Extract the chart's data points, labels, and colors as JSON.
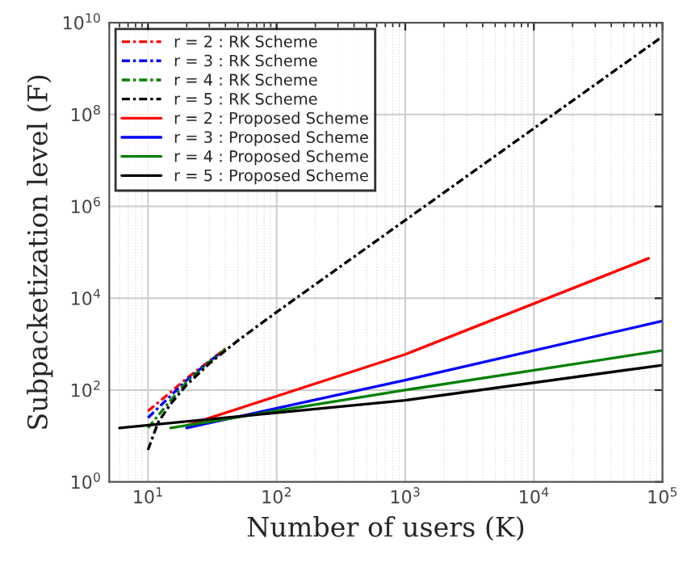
{
  "chart_data": {
    "type": "line",
    "xlabel": "Number of users (K)",
    "ylabel": "Subpacketization level (F)",
    "log": "xy",
    "grid": true,
    "legend": "top left",
    "xlim": [
      5,
      100000
    ],
    "ylim": [
      1,
      10000000000
    ],
    "xticks": [
      {
        "value": 10,
        "label": "10$^{1}$"
      },
      {
        "value": 100,
        "label": "10$^{2}$"
      },
      {
        "value": 1000,
        "label": "10$^{3}$"
      },
      {
        "value": 10000,
        "label": "10$^{4}$"
      },
      {
        "value": 100000,
        "label": "10$^{5}$"
      }
    ],
    "yticks": [
      {
        "value": 1,
        "label": "10$^{0}$"
      },
      {
        "value": 100,
        "label": "10$^{2}$"
      },
      {
        "value": 10000,
        "label": "10$^{4}$"
      },
      {
        "value": 1000000,
        "label": "10$^{6}$"
      },
      {
        "value": 100000000,
        "label": "10$^{8}$"
      },
      {
        "value": 10000000000,
        "label": "10$^{10}$"
      }
    ],
    "series": [
      {
        "name": "r = 2 : RK Scheme",
        "color": "#ff0000",
        "line_style": "dashdot",
        "x": [
          10,
          15,
          20,
          30,
          40
        ],
        "values": [
          35,
          90,
          180,
          430,
          800
        ]
      },
      {
        "name": "r = 3 : RK Scheme",
        "color": "#0000ff",
        "line_style": "dashdot",
        "x": [
          10,
          15,
          20,
          30,
          36
        ],
        "values": [
          25,
          75,
          165,
          420,
          620
        ]
      },
      {
        "name": "r = 4 : RK Scheme",
        "color": "#008000",
        "line_style": "dashdot",
        "x": [
          10,
          15,
          20,
          30,
          40
        ],
        "values": [
          15,
          60,
          150,
          410,
          780
        ]
      },
      {
        "name": "r = 5 : RK Scheme",
        "color": "#000000",
        "line_style": "dashdot",
        "x": [
          10,
          12,
          15,
          20,
          30,
          50,
          100,
          1000,
          10000,
          100000
        ],
        "values": [
          5,
          20,
          50,
          130,
          380,
          1200,
          5000,
          500000,
          50000000,
          5000000000
        ]
      },
      {
        "name": "r = 2 : Proposed Scheme",
        "color": "#ff0000",
        "line_style": "solid",
        "x": [
          20,
          1000,
          78000
        ],
        "values": [
          17,
          600,
          74000
        ]
      },
      {
        "name": "r = 3 : Proposed Scheme",
        "color": "#0000ff",
        "line_style": "solid",
        "x": [
          20,
          1000,
          100000
        ],
        "values": [
          15,
          165,
          3200
        ]
      },
      {
        "name": "r = 4 : Proposed Scheme",
        "color": "#008000",
        "line_style": "solid",
        "x": [
          15,
          1000,
          100000
        ],
        "values": [
          15,
          100,
          730
        ]
      },
      {
        "name": "r = 5 : Proposed Scheme",
        "color": "#000000",
        "line_style": "solid",
        "x": [
          6,
          1000,
          100000
        ],
        "values": [
          15,
          60,
          350
        ]
      }
    ]
  }
}
